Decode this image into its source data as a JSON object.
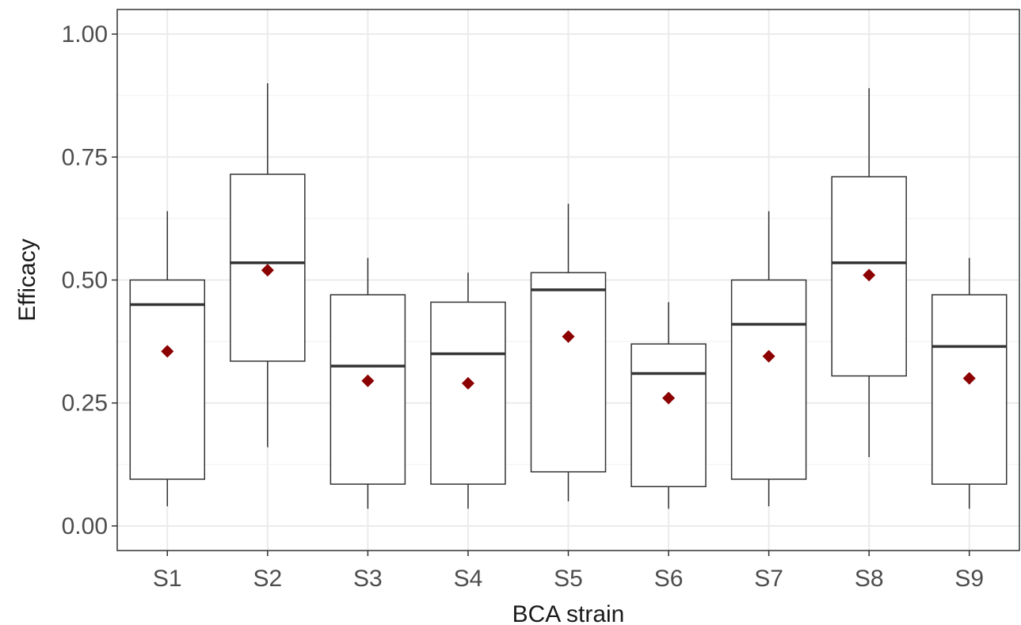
{
  "chart_data": {
    "type": "box",
    "xlabel": "BCA strain",
    "ylabel": "Efficacy",
    "ylim": [
      -0.05,
      1.05
    ],
    "yticks": [
      0,
      0.25,
      0.5,
      0.75,
      1.0
    ],
    "ytick_labels": [
      "0.00",
      "0.25",
      "0.50",
      "0.75",
      "1.00"
    ],
    "grid": true,
    "colors": {
      "mean_marker": "#8b0000",
      "box_stroke": "#333333",
      "grid_major": "#ebebeb",
      "grid_minor": "#f5f5f5"
    },
    "categories": [
      "S1",
      "S2",
      "S3",
      "S4",
      "S5",
      "S6",
      "S7",
      "S8",
      "S9"
    ],
    "boxes": [
      {
        "label": "S1",
        "min": 0.04,
        "q1": 0.095,
        "median": 0.45,
        "q3": 0.5,
        "max": 0.64,
        "mean": 0.355
      },
      {
        "label": "S2",
        "min": 0.16,
        "q1": 0.335,
        "median": 0.535,
        "q3": 0.715,
        "max": 0.9,
        "mean": 0.52
      },
      {
        "label": "S3",
        "min": 0.035,
        "q1": 0.085,
        "median": 0.325,
        "q3": 0.47,
        "max": 0.545,
        "mean": 0.295
      },
      {
        "label": "S4",
        "min": 0.035,
        "q1": 0.085,
        "median": 0.35,
        "q3": 0.455,
        "max": 0.515,
        "mean": 0.29
      },
      {
        "label": "S5",
        "min": 0.05,
        "q1": 0.11,
        "median": 0.48,
        "q3": 0.515,
        "max": 0.655,
        "mean": 0.385
      },
      {
        "label": "S6",
        "min": 0.035,
        "q1": 0.08,
        "median": 0.31,
        "q3": 0.37,
        "max": 0.455,
        "mean": 0.26
      },
      {
        "label": "S7",
        "min": 0.04,
        "q1": 0.095,
        "median": 0.41,
        "q3": 0.5,
        "max": 0.64,
        "mean": 0.345
      },
      {
        "label": "S8",
        "min": 0.14,
        "q1": 0.305,
        "median": 0.535,
        "q3": 0.71,
        "max": 0.89,
        "mean": 0.51
      },
      {
        "label": "S9",
        "min": 0.035,
        "q1": 0.085,
        "median": 0.365,
        "q3": 0.47,
        "max": 0.545,
        "mean": 0.3
      }
    ]
  }
}
